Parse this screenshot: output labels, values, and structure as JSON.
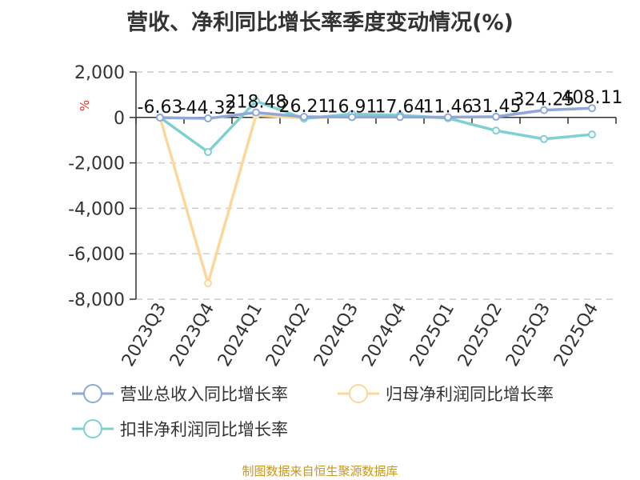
{
  "title": "营收、净利同比增长率季度变动情况(%)",
  "source": "制图数据来自恒生聚源数据库",
  "colors": {
    "revenue": "#8fa8d8",
    "net_profit": "#fcd89a",
    "deducted_net_profit": "#7fd0d3",
    "unit": "#e03030"
  },
  "chart_data": {
    "type": "line",
    "title": "营收、净利同比增长率季度变动情况(%)",
    "ylabel": "%",
    "ylim": [
      -8000,
      2000
    ],
    "yticks": [
      2000,
      0,
      -2000,
      -4000,
      -6000,
      -8000
    ],
    "ytick_labels": [
      "2,000",
      "0",
      "-2,000",
      "-4,000",
      "-6,000",
      "-8,000"
    ],
    "grid": true,
    "legend_position": "bottom",
    "x": [
      "2023Q3",
      "2023Q4",
      "2024Q1",
      "2024Q2",
      "2024Q3",
      "2024Q4",
      "2025Q1",
      "2025Q2",
      "2025Q3",
      "2025Q4"
    ],
    "series": [
      {
        "name": "营业总收入同比增长率",
        "values": [
          -6.63,
          -44.32,
          218.48,
          26.21,
          16.91,
          17.64,
          11.46,
          31.45,
          324.25,
          408.11
        ],
        "labels": [
          "-6.63",
          "-44.32",
          "218.48",
          "26.21",
          "16.91",
          "17.64",
          "11.46",
          "31.45",
          "324.25",
          "408.11"
        ]
      },
      {
        "name": "归母净利润同比增长率",
        "values": [
          0,
          -7300,
          100,
          -30,
          50,
          60,
          -20,
          null,
          null,
          null
        ]
      },
      {
        "name": "扣非净利润同比增长率",
        "values": [
          0,
          -1520,
          720,
          -50,
          150,
          100,
          -30,
          -580,
          -950,
          -750
        ]
      }
    ]
  }
}
